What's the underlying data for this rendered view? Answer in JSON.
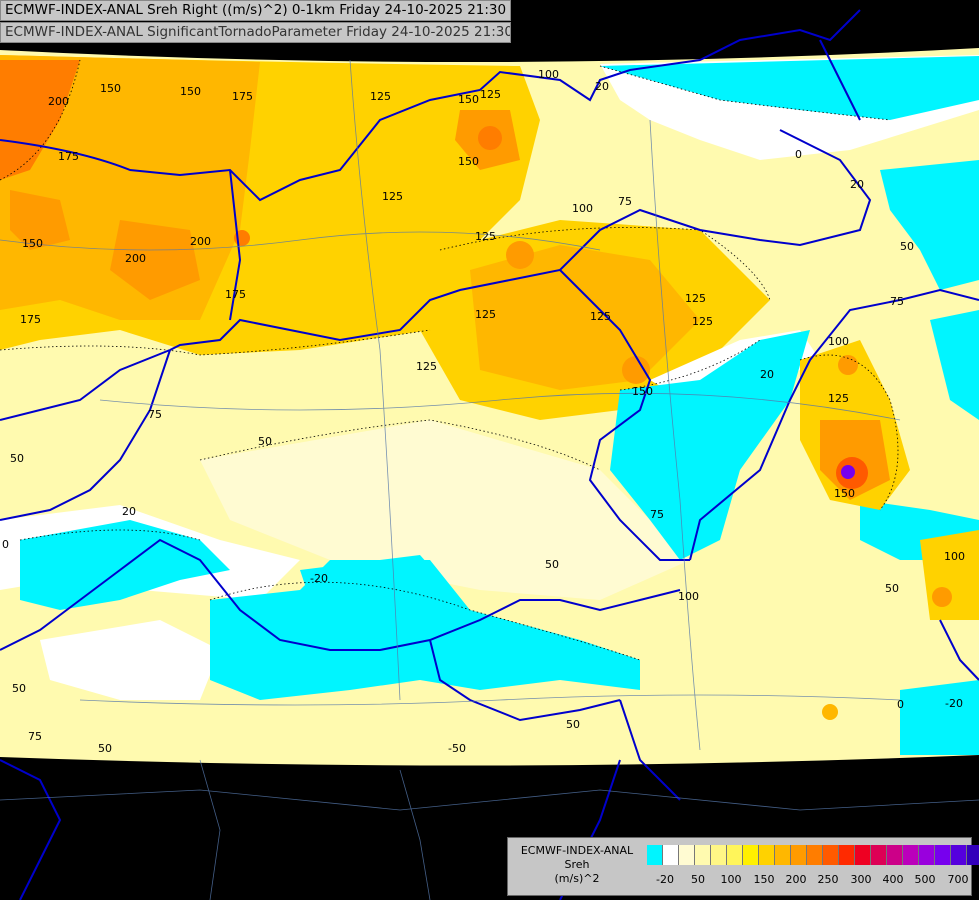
{
  "header": {
    "line1": "ECMWF-INDEX-ANAL Sreh Right ((m/s)^2) 0-1km Friday 24-10-2025 21:30",
    "line2": "ECMWF-INDEX-ANAL SignificantTornadoParameter Friday 24-10-2025 21:30"
  },
  "legend": {
    "title_line1": "ECMWF-INDEX-ANAL",
    "title_line2": "Sreh",
    "units": "(m/s)^2",
    "colors": [
      "#00f5ff",
      "#ffffff",
      "#fffbd2",
      "#fffaaf",
      "#fff786",
      "#fff55a",
      "#fff000",
      "#ffd200",
      "#ffb700",
      "#ff9b00",
      "#ff7d00",
      "#ff5a00",
      "#ff2a00",
      "#ee0022",
      "#dd0055",
      "#cc0088",
      "#bb00bb",
      "#9900dd",
      "#7700ee",
      "#5500dd",
      "#3300bb",
      "#110088"
    ],
    "ticks": [
      "-20",
      "50",
      "100",
      "150",
      "200",
      "250",
      "300",
      "400",
      "500",
      "700"
    ]
  },
  "contour_labels": [
    "200",
    "150",
    "175",
    "150",
    "175",
    "175",
    "200",
    "200",
    "150",
    "175",
    "125",
    "150",
    "125",
    "150",
    "100",
    "75",
    "125",
    "125",
    "125",
    "125",
    "125",
    "125",
    "150",
    "75",
    "50",
    "50",
    "50",
    "20",
    "20",
    "0",
    "-20",
    "100",
    "75",
    "50",
    "20",
    "0",
    "50",
    "75",
    "125",
    "100",
    "150",
    "100",
    "50",
    "75",
    "50",
    "50",
    "-50",
    "0",
    "-20",
    "20",
    "125",
    "100"
  ]
}
